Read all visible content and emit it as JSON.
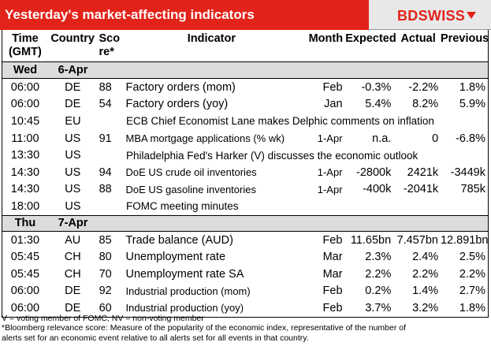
{
  "header": {
    "title": "Yesterday's market-affecting indicators",
    "logo": "BDSWISS"
  },
  "columns": {
    "time": [
      "Time",
      "(GMT)"
    ],
    "country": "Country",
    "score": [
      "Sco",
      "re*"
    ],
    "indicator": "Indicator",
    "month": "Month",
    "expected": "Expected",
    "actual": "Actual",
    "previous": "Previous"
  },
  "days": [
    {
      "weekday": "Wed",
      "date": "6-Apr",
      "rows": [
        {
          "time": "06:00",
          "country": "DE",
          "score": "88",
          "indicator": "Factory orders (mom)",
          "month": "Feb",
          "expected": "-0.3%",
          "actual": "-2.2%",
          "previous": "1.8%"
        },
        {
          "time": "06:00",
          "country": "DE",
          "score": "54",
          "indicator": "Factory orders (yoy)",
          "month": "Jan",
          "expected": "5.4%",
          "actual": "8.2%",
          "previous": "5.9%"
        },
        {
          "time": "10:45",
          "country": "EU",
          "event": "ECB Chief Economist Lane makes Delphic comments on inflation"
        },
        {
          "time": "11:00",
          "country": "US",
          "score": "91",
          "indicator": "MBA mortgage applications (% wk)",
          "month": "1-Apr",
          "expected": "n.a.",
          "actual": "0",
          "previous": "-6.8%"
        },
        {
          "time": "13:30",
          "country": "US",
          "event": "Philadelphia Fed's Harker (V) discusses the economic outlook"
        },
        {
          "time": "14:30",
          "country": "US",
          "score": "94",
          "indicator": "DoE US crude oil inventories",
          "month": "1-Apr",
          "expected": "-2800k",
          "actual": "2421k",
          "previous": "-3449k"
        },
        {
          "time": "14:30",
          "country": "US",
          "score": "88",
          "indicator": "DoE US gasoline inventories",
          "month": "1-Apr",
          "expected": "-400k",
          "actual": "-2041k",
          "previous": "785k"
        },
        {
          "time": "18:00",
          "country": "US",
          "event": "FOMC meeting minutes"
        }
      ]
    },
    {
      "weekday": "Thu",
      "date": "7-Apr",
      "rows": [
        {
          "time": "01:30",
          "country": "AU",
          "score": "85",
          "indicator": "Trade balance (AUD)",
          "month": "Feb",
          "expected": "11.65bn",
          "actual": "7.457bn",
          "previous": "12.891bn"
        },
        {
          "time": "05:45",
          "country": "CH",
          "score": "80",
          "indicator": "Unemployment rate",
          "month": "Mar",
          "expected": "2.3%",
          "actual": "2.4%",
          "previous": "2.5%"
        },
        {
          "time": "05:45",
          "country": "CH",
          "score": "70",
          "indicator": "Unemployment rate SA",
          "month": "Mar",
          "expected": "2.2%",
          "actual": "2.2%",
          "previous": "2.2%"
        },
        {
          "time": "06:00",
          "country": "DE",
          "score": "92",
          "indicator": "Industrial production (mom)",
          "month": "Feb",
          "expected": "0.2%",
          "actual": "1.4%",
          "previous": "2.7%"
        },
        {
          "time": "06:00",
          "country": "DE",
          "score": "60",
          "indicator": "Industrial production (yoy)",
          "month": "Feb",
          "expected": "3.7%",
          "actual": "3.2%",
          "previous": "1.8%"
        }
      ]
    }
  ],
  "footnotes": [
    "V = voting member of FOMC, NV = non-voting member",
    "*Bloomberg relevance score:  Measure of the popularity of the economic index, representative of the number of",
    "alerts set for an economic event relative to all alerts set for all events in that country."
  ],
  "colors": {
    "header_red": "#e2231a",
    "header_grey": "#e8e8e8",
    "day_row": "#dcdcdc"
  }
}
